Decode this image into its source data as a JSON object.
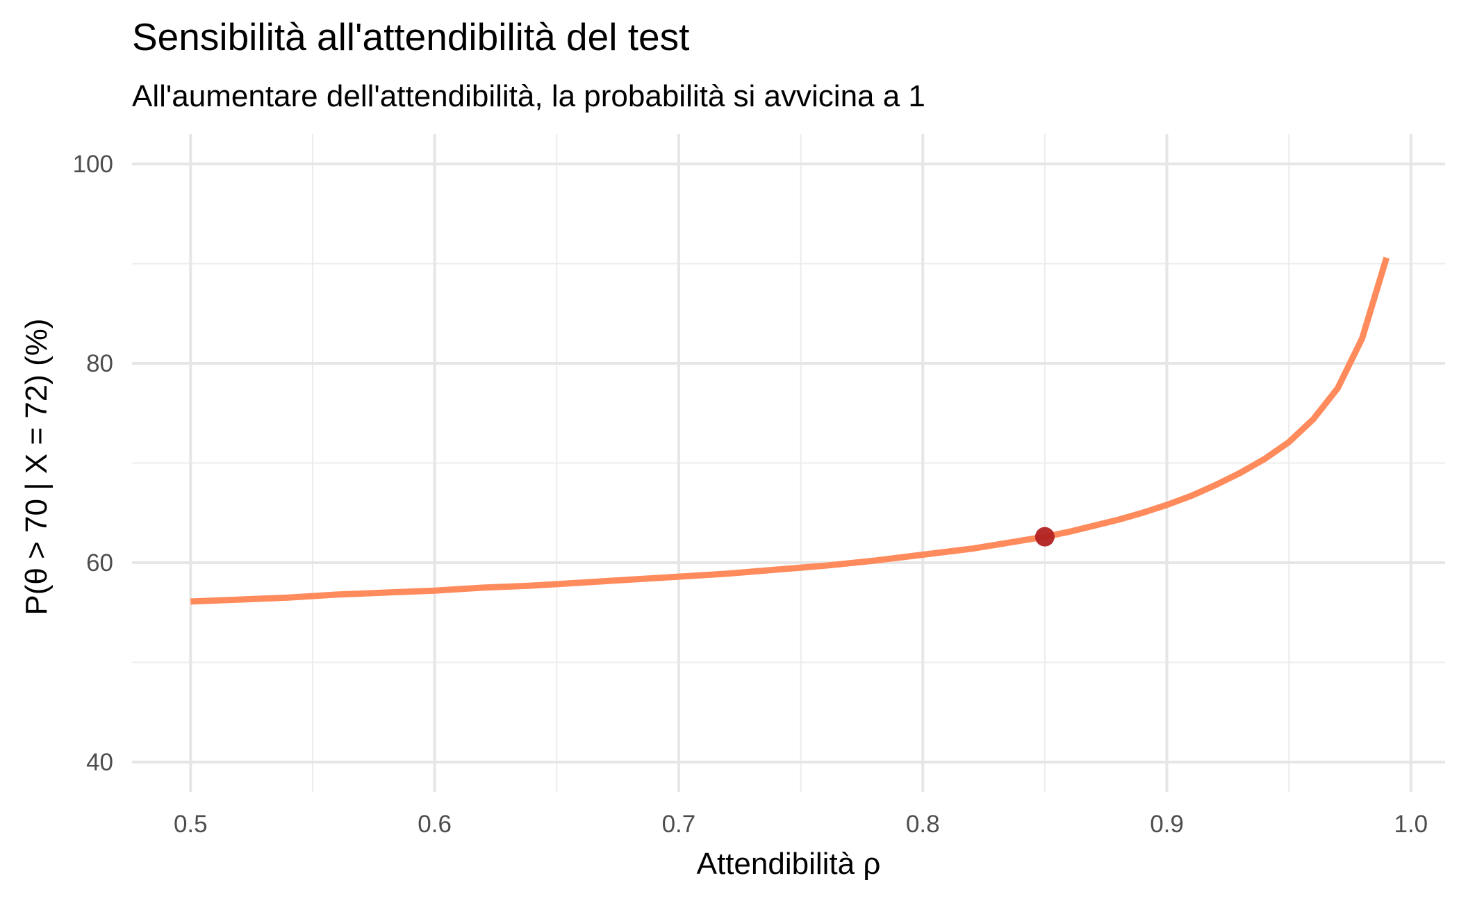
{
  "chart_data": {
    "type": "line",
    "title": "Sensibilità all'attendibilità del test",
    "subtitle": "All'aumentare dell'attendibilità, la probabilità si avvicina a 1",
    "xlabel": "Attendibilità ρ",
    "ylabel": "P(θ > 70 | X = 72) (%)",
    "xlim": [
      0.476,
      1.014
    ],
    "ylim": [
      37,
      103
    ],
    "x_ticks": [
      0.5,
      0.6,
      0.7,
      0.8,
      0.9,
      1.0
    ],
    "x_tick_labels": [
      "0.5",
      "0.6",
      "0.7",
      "0.8",
      "0.9",
      "1.0"
    ],
    "y_ticks": [
      40,
      60,
      80,
      100
    ],
    "y_tick_labels": [
      "40",
      "60",
      "80",
      "100"
    ],
    "grid": true,
    "series": [
      {
        "color": "#FF8A5B",
        "x": [
          0.5,
          0.52,
          0.54,
          0.56,
          0.58,
          0.6,
          0.62,
          0.64,
          0.66,
          0.68,
          0.7,
          0.72,
          0.74,
          0.76,
          0.78,
          0.8,
          0.82,
          0.84,
          0.85,
          0.86,
          0.87,
          0.88,
          0.89,
          0.9,
          0.91,
          0.92,
          0.93,
          0.94,
          0.95,
          0.96,
          0.97,
          0.98,
          0.99
        ],
        "y": [
          56.1,
          56.3,
          56.5,
          56.8,
          57.0,
          57.2,
          57.5,
          57.7,
          58.0,
          58.3,
          58.6,
          58.9,
          59.3,
          59.7,
          60.2,
          60.8,
          61.4,
          62.2,
          62.6,
          63.1,
          63.7,
          64.3,
          65.0,
          65.8,
          66.7,
          67.8,
          69.0,
          70.4,
          72.1,
          74.4,
          77.5,
          82.5,
          90.6
        ]
      }
    ],
    "highlight_point": {
      "x": 0.85,
      "y": 62.6,
      "color": "#B22222"
    }
  }
}
